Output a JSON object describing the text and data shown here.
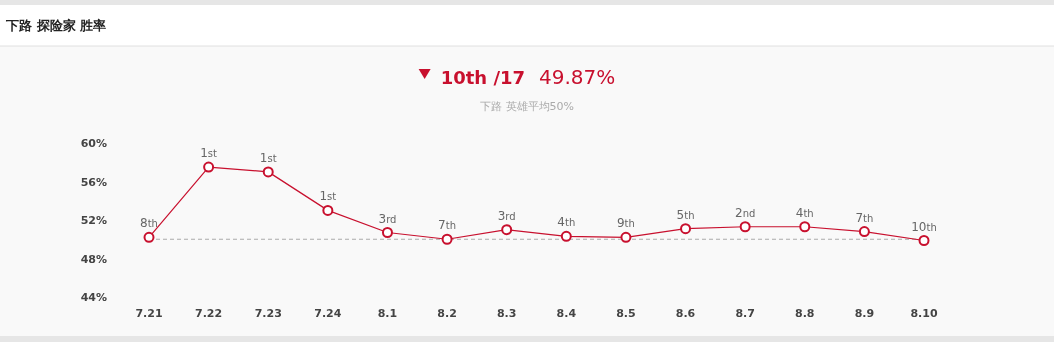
{
  "chart_data": {
    "type": "line",
    "title": "下路 探险家 胜率",
    "subtitle": "下路 英雄平均50%",
    "annotations": [
      "10th /17",
      "49.87%",
      {
        "text": "8th",
        "x": "7.21",
        "y": 50.2
      },
      {
        "text": "1st",
        "x": "7.22",
        "y": 57.5
      },
      {
        "text": "1st",
        "x": "7.23",
        "y": 57.0
      },
      {
        "text": "1st",
        "x": "7.24",
        "y": 53.0
      },
      {
        "text": "3rd",
        "x": "8.1",
        "y": 50.7
      },
      {
        "text": "7th",
        "x": "8.2",
        "y": 50.0
      },
      {
        "text": "3rd",
        "x": "8.3",
        "y": 51.0
      },
      {
        "text": "4th",
        "x": "8.4",
        "y": 50.3
      },
      {
        "text": "9th",
        "x": "8.5",
        "y": 50.2
      },
      {
        "text": "5th",
        "x": "8.6",
        "y": 51.1
      },
      {
        "text": "2nd",
        "x": "8.7",
        "y": 51.3
      },
      {
        "text": "4th",
        "x": "8.8",
        "y": 51.3
      },
      {
        "text": "7th",
        "x": "8.9",
        "y": 50.8
      },
      {
        "text": "10th",
        "x": "8.10",
        "y": 49.87
      }
    ],
    "categories": [
      "7.21",
      "7.22",
      "7.23",
      "7.24",
      "8.1",
      "8.2",
      "8.3",
      "8.4",
      "8.5",
      "8.6",
      "8.7",
      "8.8",
      "8.9",
      "8.10"
    ],
    "series": [
      {
        "color": "#c8102e",
        "values": [
          50.2,
          57.5,
          57.0,
          53.0,
          50.7,
          50.0,
          51.0,
          50.3,
          50.2,
          51.1,
          51.3,
          51.3,
          50.8,
          49.87
        ]
      }
    ],
    "ylim": [
      44,
      60
    ],
    "yticks": [
      {
        "value": 44,
        "label": "44%"
      },
      {
        "value": 48,
        "label": "48%"
      },
      {
        "value": 52,
        "label": "52%"
      },
      {
        "value": 56,
        "label": "56%"
      },
      {
        "value": 60,
        "label": "60%"
      }
    ],
    "ref_lines": [
      {
        "axis": "y",
        "value": 50,
        "color": "#aaaaaa",
        "line_style": "dashed"
      }
    ],
    "marker": "circle",
    "line_style": "solid",
    "grid": false
  }
}
